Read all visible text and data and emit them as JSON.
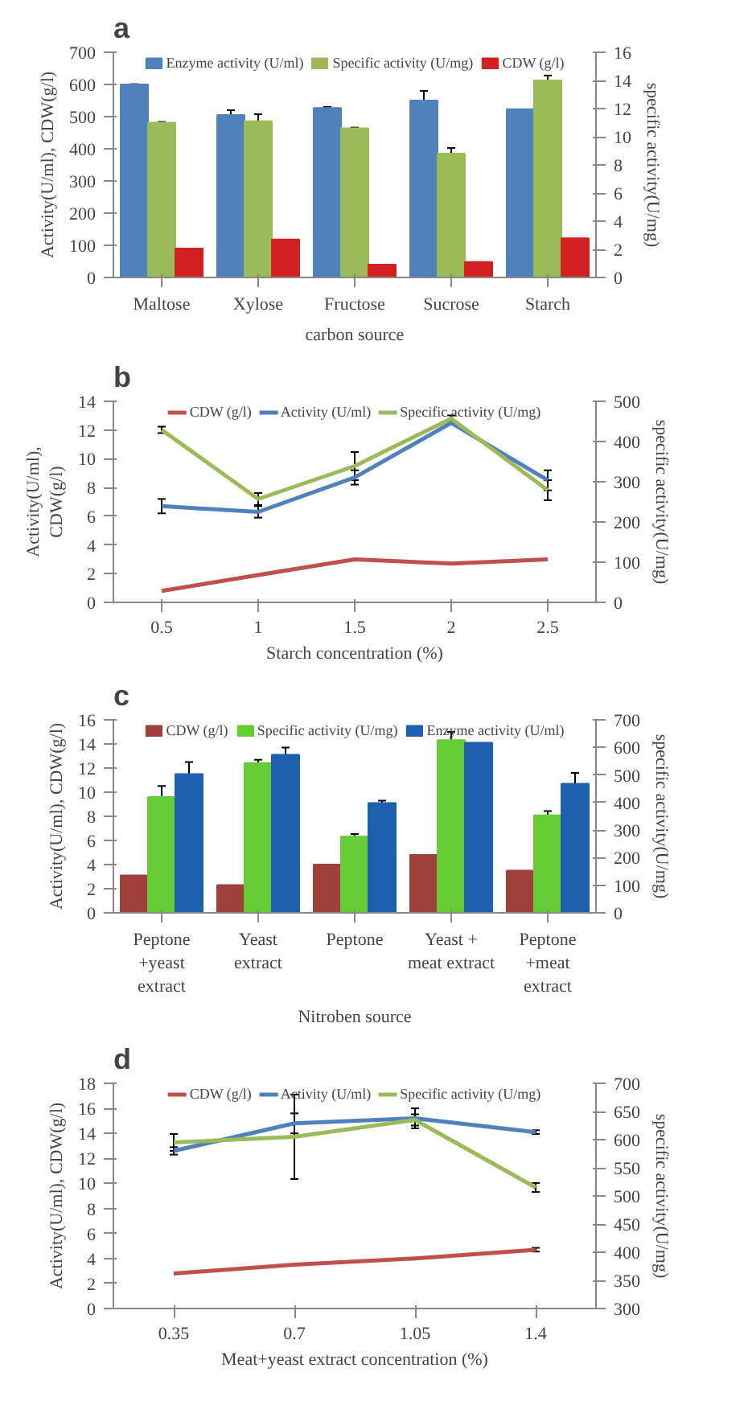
{
  "chart_data": [
    {
      "type": "bar",
      "title": "a",
      "categories": [
        "Maltose",
        "Xylose",
        "Fructose",
        "Sucrose",
        "Starch"
      ],
      "xlabel": "carbon source",
      "ylabel": "Activity(U/ml), CDW(g/l)",
      "y2label": "specific activity(U/mg)",
      "ylim": [
        0,
        700
      ],
      "yticks": [
        0,
        100,
        200,
        300,
        400,
        500,
        600,
        700
      ],
      "y2lim": [
        0,
        16
      ],
      "y2ticks": [
        0,
        2,
        4,
        6,
        8,
        10,
        12,
        14,
        16
      ],
      "legend": "top",
      "series": [
        {
          "name": "Enzyme activity (U/ml)",
          "color": "#4f81bd",
          "values": [
            600,
            505,
            527,
            550,
            523
          ],
          "errors": [
            1,
            15,
            3,
            30,
            null
          ]
        },
        {
          "name": "Specific activity (U/mg)",
          "color": "#9bbb59",
          "axis": "y2",
          "values": [
            11.0,
            11.1,
            10.6,
            8.8,
            14.0
          ],
          "errors": [
            0.05,
            0.5,
            0.05,
            0.4,
            0.35
          ]
        },
        {
          "name": "CDW (g/l)",
          "color": "#d42020",
          "values": [
            90,
            118,
            40,
            48,
            122
          ]
        }
      ]
    },
    {
      "type": "line",
      "title": "b",
      "categories": [
        "0.5",
        "1",
        "1.5",
        "2",
        "2.5"
      ],
      "xlabel": "Starch concentration (%)",
      "ylabel": "Activity(U/ml),\nCDW(g/l)",
      "y2label": "specific activity(U/mg)",
      "ylim": [
        0,
        14
      ],
      "yticks": [
        0,
        2,
        4,
        6,
        8,
        10,
        12,
        14
      ],
      "y2lim": [
        0,
        500
      ],
      "y2ticks": [
        0,
        100,
        200,
        300,
        400,
        500
      ],
      "legend": "top",
      "series": [
        {
          "name": "CDW (g/l)",
          "color": "#c0504d",
          "values": [
            0.8,
            1.9,
            3.0,
            2.7,
            3.0
          ]
        },
        {
          "name": "Activity (U/ml)",
          "color": "#4f81bd",
          "values": [
            6.7,
            6.3,
            8.7,
            12.5,
            8.5
          ],
          "errors": [
            0.5,
            0.4,
            0.5,
            0.1,
            0.7
          ]
        },
        {
          "name": "Specific activity (U/mg)",
          "color": "#9bbb59",
          "axis": "y2",
          "values": [
            429,
            257,
            339,
            457,
            279
          ],
          "errors": [
            8,
            15,
            35,
            8,
            25
          ]
        }
      ]
    },
    {
      "type": "bar",
      "title": "c",
      "categories": [
        "Peptone\n+yeast\nextract",
        "Yeast\nextract",
        "Peptone",
        "Yeast +\nmeat extract",
        "Peptone\n+meat\nextract"
      ],
      "xlabel": "Nitroben source",
      "ylabel": "Activity(U/ml), CDW(g/l)",
      "y2label": "specific activity(U/mg)",
      "ylim": [
        0,
        16
      ],
      "yticks": [
        0,
        2,
        4,
        6,
        8,
        10,
        12,
        14,
        16
      ],
      "y2lim": [
        0,
        700
      ],
      "y2ticks": [
        0,
        100,
        200,
        300,
        400,
        500,
        600,
        700
      ],
      "legend": "top",
      "series": [
        {
          "name": "CDW (g/l)",
          "color": "#a0403c",
          "values": [
            3.1,
            2.3,
            4.0,
            4.8,
            3.5
          ]
        },
        {
          "name": "Specific activity (U/mg)",
          "color": "#66cc33",
          "axis": "y2",
          "values": [
            420,
            543,
            276,
            626,
            354
          ],
          "errors": [
            40,
            12,
            10,
            30,
            15
          ]
        },
        {
          "name": "Enzyme activity (U/ml)",
          "color": "#1f5fb0",
          "values": [
            11.5,
            13.1,
            9.1,
            14.1,
            10.7
          ],
          "errors": [
            1.0,
            0.6,
            0.2,
            null,
            0.9
          ]
        }
      ]
    },
    {
      "type": "line",
      "title": "d",
      "categories": [
        "0.35",
        "0.7",
        "1.05",
        "1.4"
      ],
      "xlabel": "Meat+yeast extract concentration (%)",
      "ylabel": "Activity(U/ml), CDW(g/l)",
      "y2label": "specific activity(U/mg)",
      "ylim": [
        0,
        18
      ],
      "yticks": [
        0,
        2,
        4,
        6,
        8,
        10,
        12,
        14,
        16,
        18
      ],
      "y2lim": [
        300,
        700
      ],
      "y2ticks": [
        300,
        350,
        400,
        450,
        500,
        550,
        600,
        650,
        700
      ],
      "legend": "top",
      "series": [
        {
          "name": "CDW (g/l)",
          "color": "#c0504d",
          "values": [
            2.8,
            3.5,
            4.0,
            4.7
          ],
          "errors": [
            null,
            null,
            null,
            0.15
          ]
        },
        {
          "name": "Activity (U/ml)",
          "color": "#4f81bd",
          "values": [
            12.6,
            14.8,
            15.2,
            14.1
          ],
          "errors": [
            0.3,
            0.8,
            0.8,
            0.15
          ]
        },
        {
          "name": "Specific activity (U/mg)",
          "color": "#9bbb59",
          "axis": "y2",
          "values": [
            595,
            605,
            635,
            515
          ],
          "errors": [
            15,
            75,
            10,
            8
          ]
        }
      ]
    }
  ]
}
